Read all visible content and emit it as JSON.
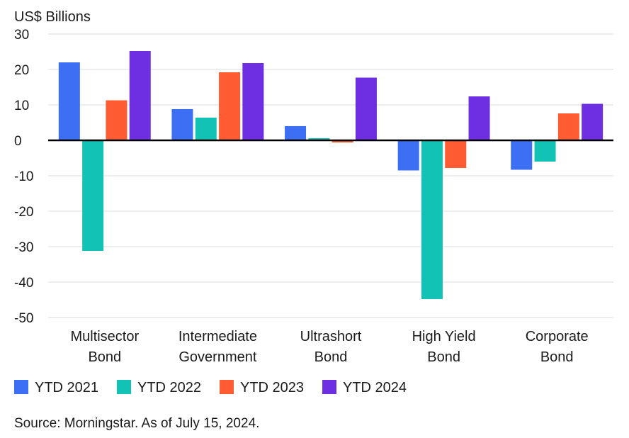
{
  "chart_data": {
    "type": "bar",
    "ylabel": "US$ Billions",
    "ylim": [
      -50,
      30
    ],
    "yticks": [
      30,
      20,
      10,
      0,
      -10,
      -20,
      -30,
      -40,
      -50
    ],
    "grid": true,
    "legend_position": "bottom-left",
    "categories": [
      [
        "Multisector",
        "Bond"
      ],
      [
        "Intermediate",
        "Government"
      ],
      [
        "Ultrashort",
        "Bond"
      ],
      [
        "High Yield",
        "Bond"
      ],
      [
        "Corporate",
        "Bond"
      ]
    ],
    "series": [
      {
        "name": "YTD 2021",
        "color": "#3d6ff5",
        "values": [
          22.0,
          8.8,
          4.0,
          -8.5,
          -8.3
        ]
      },
      {
        "name": "YTD 2022",
        "color": "#12c2b4",
        "values": [
          -31.2,
          6.4,
          0.6,
          -44.8,
          -6.0
        ]
      },
      {
        "name": "YTD 2023",
        "color": "#ff5c33",
        "values": [
          11.3,
          19.2,
          -0.6,
          -7.8,
          7.6
        ]
      },
      {
        "name": "YTD 2024",
        "color": "#6e2fe3",
        "values": [
          25.2,
          21.8,
          17.7,
          12.4,
          10.3
        ]
      }
    ]
  },
  "source_note": "Source: Morningstar. As of July 15, 2024."
}
